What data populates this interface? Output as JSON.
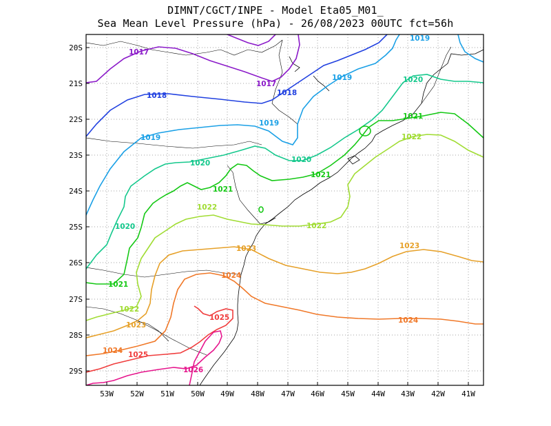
{
  "title_line1": "DIMNT/CGCT/INPE -  Model Eta05_M01_",
  "title_line2": "Sea Mean Level Pressure (hPa) - 26/08/2023 00UTC fct=56h",
  "map": {
    "lon_range": [
      -53.7,
      -40.5
    ],
    "lat_range": [
      -29.4,
      -19.75
    ],
    "grid": "dotted",
    "lat_ticks": [
      "20S",
      "21S",
      "22S",
      "23S",
      "24S",
      "25S",
      "26S",
      "27S",
      "28S",
      "29S"
    ],
    "lon_ticks": [
      "53W",
      "52W",
      "51W",
      "50W",
      "49W",
      "48W",
      "47W",
      "46W",
      "45W",
      "44W",
      "43W",
      "42W",
      "41W"
    ],
    "contour_colors": {
      "1017": "#8b1ac9",
      "1018": "#2040e0",
      "1019": "#1aa0e6",
      "1020": "#14c88c",
      "1021": "#14c814",
      "1022": "#a0dc32",
      "1023": "#e6a028",
      "1024": "#f07828",
      "1025": "#f03c3c",
      "1026": "#e6148c"
    },
    "contour_labels": [
      "1017",
      "1017",
      "1018",
      "1018",
      "1019",
      "1019",
      "1019",
      "1019",
      "1020",
      "1020",
      "1020",
      "1020",
      "1021",
      "1021",
      "1021",
      "1021",
      "1022",
      "1022",
      "1022",
      "1022",
      "1023",
      "1023",
      "1023",
      "1024",
      "1024",
      "1024",
      "1025",
      "1025",
      "1026"
    ]
  }
}
